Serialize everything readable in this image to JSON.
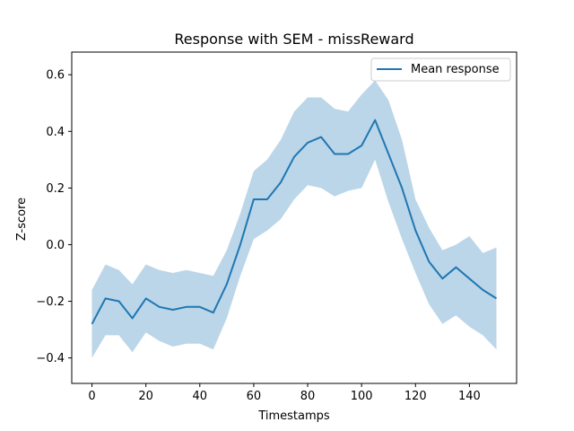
{
  "chart_data": {
    "type": "line",
    "title": "Response with SEM - missReward",
    "xlabel": "Timestamps",
    "ylabel": "Z-score",
    "xlim": [
      -7.5,
      157.5
    ],
    "ylim": [
      -0.49,
      0.68
    ],
    "xticks": [
      0,
      20,
      40,
      60,
      80,
      100,
      120,
      140
    ],
    "yticks": [
      -0.4,
      -0.2,
      0.0,
      0.2,
      0.4,
      0.6
    ],
    "xtick_labels": [
      "0",
      "20",
      "40",
      "60",
      "80",
      "100",
      "120",
      "140"
    ],
    "ytick_labels": [
      "−0.4",
      "−0.2",
      "0.0",
      "0.2",
      "0.4",
      "0.6"
    ],
    "grid": false,
    "legend_position": "upper-right",
    "colors": {
      "line": "#1f77b4",
      "band": "#1f77b4",
      "band_opacity": 0.3
    },
    "series": [
      {
        "name": "Mean response",
        "x": [
          0,
          5,
          10,
          15,
          20,
          25,
          30,
          35,
          40,
          45,
          50,
          55,
          60,
          65,
          70,
          75,
          80,
          85,
          90,
          95,
          100,
          105,
          110,
          115,
          120,
          125,
          130,
          135,
          140,
          145,
          150
        ],
        "y": [
          -0.28,
          -0.19,
          -0.2,
          -0.26,
          -0.19,
          -0.22,
          -0.23,
          -0.22,
          -0.22,
          -0.24,
          -0.14,
          0.0,
          0.16,
          0.16,
          0.22,
          0.31,
          0.36,
          0.38,
          0.32,
          0.32,
          0.35,
          0.44,
          0.32,
          0.2,
          0.05,
          -0.06,
          -0.12,
          -0.08,
          -0.12,
          -0.16,
          -0.19
        ],
        "upper": [
          -0.16,
          -0.07,
          -0.09,
          -0.14,
          -0.07,
          -0.09,
          -0.1,
          -0.09,
          -0.1,
          -0.11,
          -0.02,
          0.11,
          0.26,
          0.3,
          0.37,
          0.47,
          0.52,
          0.52,
          0.48,
          0.47,
          0.53,
          0.58,
          0.51,
          0.37,
          0.16,
          0.06,
          -0.02,
          0.0,
          0.03,
          -0.03,
          -0.01
        ],
        "lower": [
          -0.4,
          -0.32,
          -0.32,
          -0.38,
          -0.31,
          -0.34,
          -0.36,
          -0.35,
          -0.35,
          -0.37,
          -0.26,
          -0.11,
          0.02,
          0.05,
          0.09,
          0.16,
          0.21,
          0.2,
          0.17,
          0.19,
          0.2,
          0.3,
          0.15,
          0.02,
          -0.1,
          -0.21,
          -0.28,
          -0.25,
          -0.29,
          -0.32,
          -0.37
        ]
      }
    ]
  }
}
